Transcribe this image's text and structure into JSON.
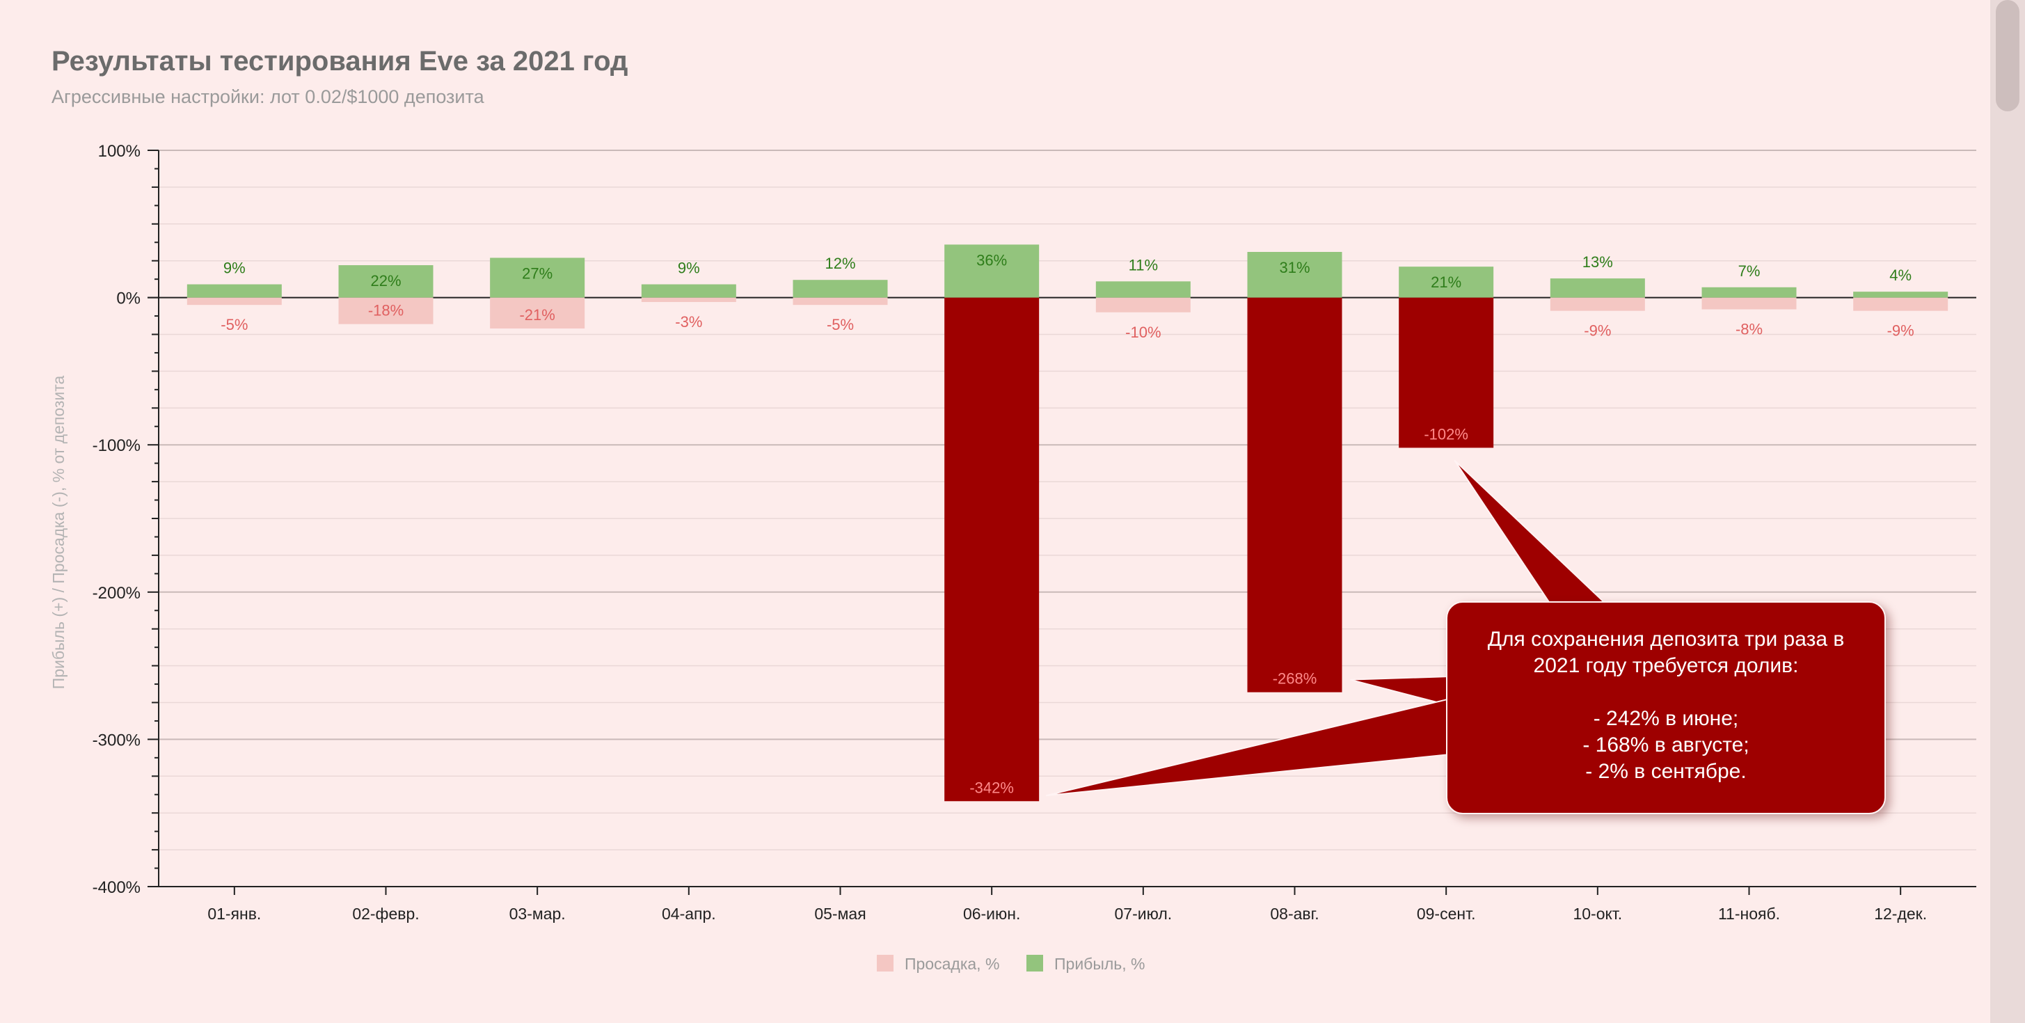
{
  "title": "Результаты тестирования Eve за 2021 год",
  "subtitle": "Агрессивные настройки: лот 0.02/$1000 депозита",
  "colors": {
    "profit": "#93c47d",
    "drawdown_light": "#f4c7c3",
    "drawdown_dark": "#9e0000",
    "profit_label": "#2e7d1a",
    "drawdown_label": "#e06060",
    "background": "#fdeceb"
  },
  "callout": {
    "lines": [
      "Для сохранения депозита три раза в",
      "2021 году требуется долив:",
      "",
      "- 242% в июне;",
      "- 168% в августе;",
      "- 2% в сентябре."
    ]
  },
  "chart_data": {
    "type": "bar",
    "title": "Результаты тестирования Eve за 2021 год",
    "subtitle": "Агрессивные настройки: лот 0.02/$1000 депозита",
    "ylabel": "Прибыль (+) / Просадка (-), % от депозита",
    "xlabel": "",
    "ylim": [
      -400,
      100
    ],
    "yticks": [
      100,
      0,
      -100,
      -200,
      -300,
      -400
    ],
    "ytick_labels": [
      "100%",
      "0%",
      "-100%",
      "-200%",
      "-300%",
      "-400%"
    ],
    "categories": [
      "01-янв.",
      "02-февр.",
      "03-мар.",
      "04-апр.",
      "05-мая",
      "06-июн.",
      "07-июл.",
      "08-авг.",
      "09-сент.",
      "10-окт.",
      "11-нояб.",
      "12-дек."
    ],
    "series": [
      {
        "name": "Просадка, %",
        "values": [
          -5,
          -18,
          -21,
          -3,
          -5,
          -342,
          -10,
          -268,
          -102,
          -9,
          -8,
          -9
        ],
        "labels": [
          "-5%",
          "-18%",
          "-21%",
          "-3%",
          "-5%",
          "-342%",
          "-10%",
          "-268%",
          "-102%",
          "-9%",
          "-8%",
          "-9%"
        ],
        "highlighted": [
          false,
          false,
          false,
          false,
          false,
          true,
          false,
          true,
          true,
          false,
          false,
          false
        ]
      },
      {
        "name": "Прибыль, %",
        "values": [
          9,
          22,
          27,
          9,
          12,
          36,
          11,
          31,
          21,
          13,
          7,
          4
        ],
        "labels": [
          "9%",
          "22%",
          "27%",
          "9%",
          "12%",
          "36%",
          "11%",
          "31%",
          "21%",
          "13%",
          "7%",
          "4%"
        ]
      }
    ],
    "legend_position": "bottom",
    "grid": true
  }
}
